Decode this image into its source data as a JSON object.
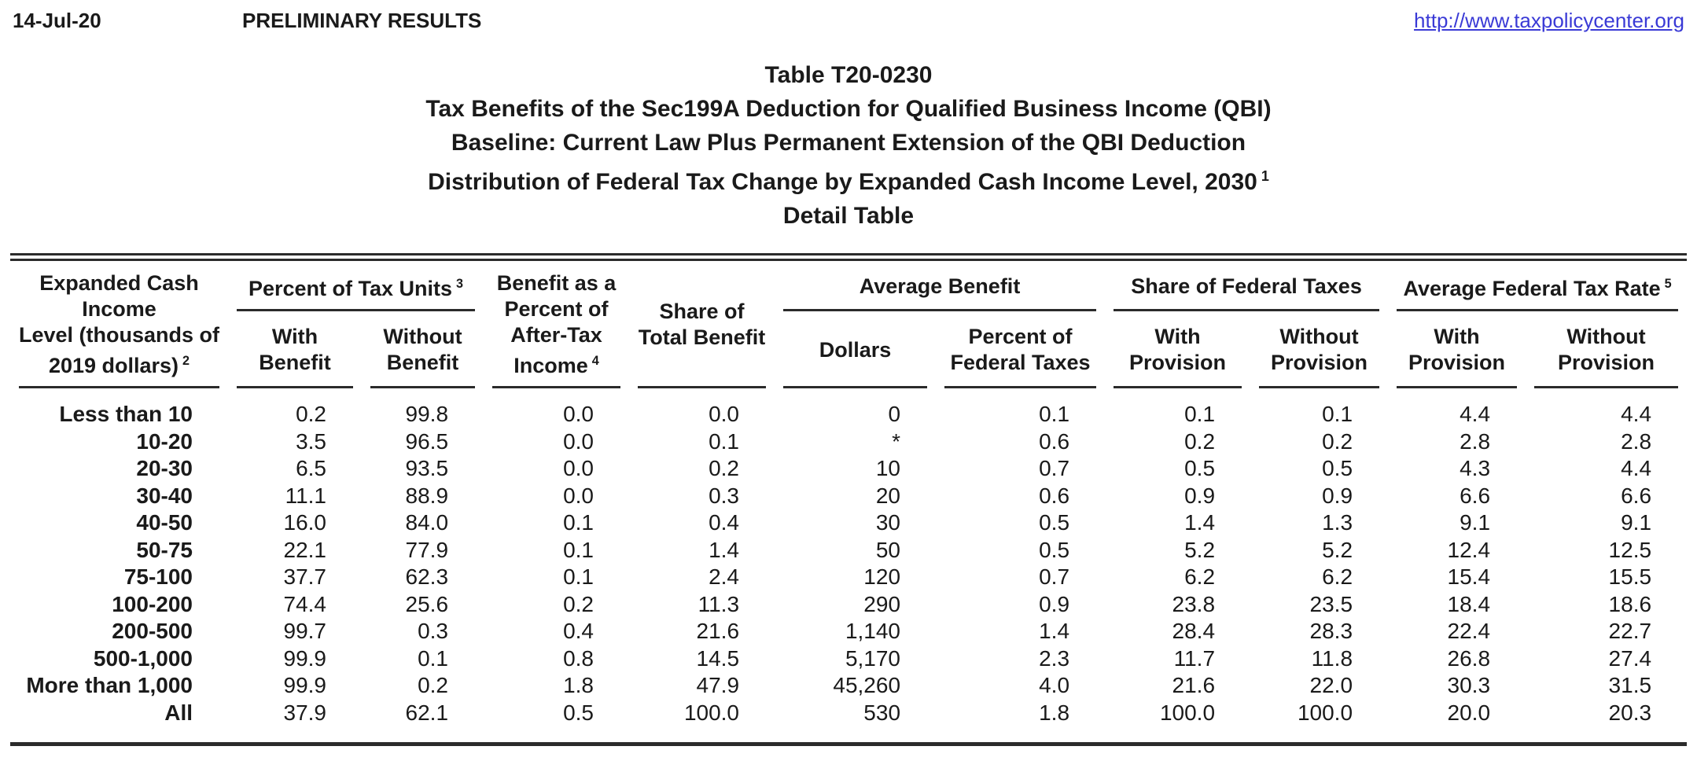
{
  "header": {
    "date": "14-Jul-20",
    "status": "PRELIMINARY RESULTS",
    "url": "http://www.taxpolicycenter.org"
  },
  "title": {
    "line1": "Table T20-0230",
    "line2": "Tax Benefits of the Sec199A Deduction for Qualified Business Income (QBI)",
    "line3": "Baseline: Current Law Plus Permanent Extension of the QBI Deduction",
    "line4": "Distribution of Federal Tax Change by Expanded Cash Income Level, 2030",
    "line4_sup": "1",
    "line5": "Detail Table"
  },
  "colors": {
    "link": "#3a3ad6",
    "rule": "#2b2b2b",
    "text": "#1a1a1a"
  },
  "table": {
    "col1_header": {
      "label": "Expanded Cash Income\nLevel (thousands of\n2019 dollars)",
      "sup": "2"
    },
    "groups": {
      "tax_units": {
        "label": "Percent of Tax Units",
        "sup": "3"
      },
      "benefit_pct_ati": {
        "label": "Benefit as a\nPercent of\nAfter-Tax\nIncome",
        "sup": "4"
      },
      "share_total": {
        "label": "Share of\nTotal Benefit",
        "sup": ""
      },
      "avg_benefit": {
        "label": "Average Benefit",
        "sup": ""
      },
      "share_fed": {
        "label": "Share of Federal Taxes",
        "sup": ""
      },
      "avg_rate": {
        "label": "Average Federal Tax Rate",
        "sup": "5"
      }
    },
    "subheads": {
      "with_benefit": "With\nBenefit",
      "without_benefit": "Without\nBenefit",
      "dollars": "Dollars",
      "pct_fed_taxes": "Percent of\nFederal Taxes",
      "with_provision": "With Provision",
      "without_provision": "Without\nProvision",
      "with_provision_rate": "With\nProvision",
      "without_provision_rate": "Without\nProvision"
    },
    "rows": [
      {
        "label": "Less than 10",
        "values": [
          "0.2",
          "99.8",
          "0.0",
          "0.0",
          "0",
          "0.1",
          "0.1",
          "0.1",
          "4.4",
          "4.4"
        ]
      },
      {
        "label": "10-20",
        "values": [
          "3.5",
          "96.5",
          "0.0",
          "0.1",
          "*",
          "0.6",
          "0.2",
          "0.2",
          "2.8",
          "2.8"
        ]
      },
      {
        "label": "20-30",
        "values": [
          "6.5",
          "93.5",
          "0.0",
          "0.2",
          "10",
          "0.7",
          "0.5",
          "0.5",
          "4.3",
          "4.4"
        ]
      },
      {
        "label": "30-40",
        "values": [
          "11.1",
          "88.9",
          "0.0",
          "0.3",
          "20",
          "0.6",
          "0.9",
          "0.9",
          "6.6",
          "6.6"
        ]
      },
      {
        "label": "40-50",
        "values": [
          "16.0",
          "84.0",
          "0.1",
          "0.4",
          "30",
          "0.5",
          "1.4",
          "1.3",
          "9.1",
          "9.1"
        ]
      },
      {
        "label": "50-75",
        "values": [
          "22.1",
          "77.9",
          "0.1",
          "1.4",
          "50",
          "0.5",
          "5.2",
          "5.2",
          "12.4",
          "12.5"
        ]
      },
      {
        "label": "75-100",
        "values": [
          "37.7",
          "62.3",
          "0.1",
          "2.4",
          "120",
          "0.7",
          "6.2",
          "6.2",
          "15.4",
          "15.5"
        ]
      },
      {
        "label": "100-200",
        "values": [
          "74.4",
          "25.6",
          "0.2",
          "11.3",
          "290",
          "0.9",
          "23.8",
          "23.5",
          "18.4",
          "18.6"
        ]
      },
      {
        "label": "200-500",
        "values": [
          "99.7",
          "0.3",
          "0.4",
          "21.6",
          "1,140",
          "1.4",
          "28.4",
          "28.3",
          "22.4",
          "22.7"
        ]
      },
      {
        "label": "500-1,000",
        "values": [
          "99.9",
          "0.1",
          "0.8",
          "14.5",
          "5,170",
          "2.3",
          "11.7",
          "11.8",
          "26.8",
          "27.4"
        ]
      },
      {
        "label": "More than 1,000",
        "values": [
          "99.9",
          "0.2",
          "1.8",
          "47.9",
          "45,260",
          "4.0",
          "21.6",
          "22.0",
          "30.3",
          "31.5"
        ]
      },
      {
        "label": "All",
        "values": [
          "37.9",
          "62.1",
          "0.5",
          "100.0",
          "530",
          "1.8",
          "100.0",
          "100.0",
          "20.0",
          "20.3"
        ]
      }
    ]
  }
}
